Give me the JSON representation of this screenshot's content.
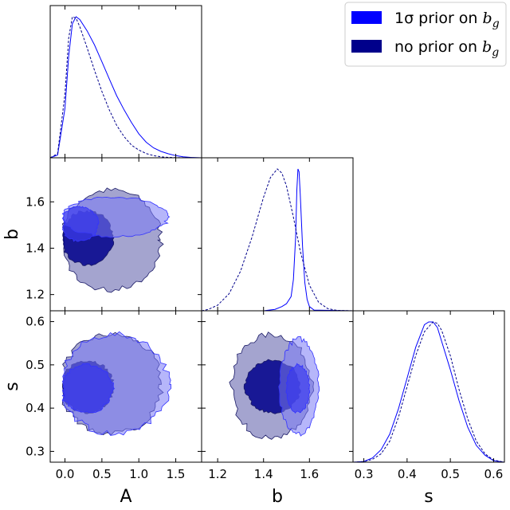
{
  "chart_data": {
    "type": "corner",
    "parameters": [
      "A",
      "b",
      "s"
    ],
    "axes": {
      "A": {
        "label": "A",
        "lim": [
          -0.2,
          1.85
        ],
        "ticks": [
          0.0,
          0.5,
          1.0,
          1.5
        ],
        "tick_labels": [
          "0.0",
          "0.5",
          "1.0",
          "1.5"
        ]
      },
      "b": {
        "label": "b",
        "lim": [
          1.13,
          1.79
        ],
        "ticks": [
          1.2,
          1.4,
          1.6
        ],
        "tick_labels": [
          "1.2",
          "1.4",
          "1.6"
        ]
      },
      "s": {
        "label": "s",
        "lim": [
          0.275,
          0.625
        ],
        "ticks": [
          0.3,
          0.4,
          0.5,
          0.6
        ],
        "tick_labels": [
          "0.3",
          "0.4",
          "0.5",
          "0.6"
        ]
      }
    },
    "legend": {
      "placement": "top-right",
      "entries": [
        {
          "text": "1σ prior on ",
          "sub": "b",
          "subscript": "g",
          "color": "#0000ff"
        },
        {
          "text": "no prior on ",
          "sub": "b",
          "subscript": "g",
          "color": "#00008b"
        }
      ]
    },
    "series": [
      {
        "key": "prior",
        "color": "#0000ff",
        "line": "solid",
        "marginals": {
          "A": {
            "x": [
              -0.2,
              -0.1,
              0.0,
              0.05,
              0.1,
              0.15,
              0.2,
              0.3,
              0.4,
              0.5,
              0.6,
              0.7,
              0.8,
              0.9,
              1.0,
              1.1,
              1.2,
              1.3,
              1.4,
              1.5,
              1.6,
              1.7,
              1.85
            ],
            "y": [
              0.0,
              0.02,
              0.35,
              0.72,
              0.95,
              1.0,
              0.98,
              0.9,
              0.8,
              0.68,
              0.56,
              0.44,
              0.34,
              0.25,
              0.17,
              0.11,
              0.07,
              0.045,
              0.028,
              0.015,
              0.007,
              0.003,
              0.0
            ]
          },
          "b": {
            "x": [
              1.13,
              1.4,
              1.45,
              1.48,
              1.5,
              1.52,
              1.53,
              1.54,
              1.545,
              1.55,
              1.555,
              1.56,
              1.57,
              1.58,
              1.59,
              1.6,
              1.62,
              1.79
            ],
            "y": [
              0.0,
              0.0,
              0.01,
              0.03,
              0.05,
              0.1,
              0.22,
              0.52,
              0.85,
              1.0,
              0.98,
              0.82,
              0.45,
              0.2,
              0.08,
              0.03,
              0.005,
              0.0
            ]
          },
          "s": {
            "x": [
              0.275,
              0.3,
              0.32,
              0.34,
              0.36,
              0.38,
              0.4,
              0.42,
              0.44,
              0.45,
              0.46,
              0.47,
              0.48,
              0.5,
              0.52,
              0.54,
              0.56,
              0.58,
              0.6,
              0.625
            ],
            "y": [
              0.0,
              0.005,
              0.03,
              0.09,
              0.2,
              0.38,
              0.6,
              0.82,
              0.98,
              1.0,
              1.0,
              0.96,
              0.86,
              0.66,
              0.44,
              0.25,
              0.12,
              0.05,
              0.01,
              0.0
            ]
          }
        },
        "contours_2d": {
          "b_vs_A": {
            "x_range_68": [
              -0.05,
              0.45
            ],
            "y_range_68": [
              1.43,
              1.58
            ],
            "x_range_95": [
              -0.05,
              1.4
            ],
            "y_range_95": [
              1.45,
              1.62
            ]
          },
          "s_vs_A": {
            "x_range_68": [
              -0.05,
              0.65
            ],
            "y_range_68": [
              0.39,
              0.5
            ],
            "x_range_95": [
              -0.05,
              1.4
            ],
            "y_range_95": [
              0.34,
              0.57
            ]
          },
          "s_vs_b": {
            "x_range_68": [
              1.5,
              1.6
            ],
            "y_range_68": [
              0.39,
              0.5
            ],
            "x_range_95": [
              1.47,
              1.64
            ],
            "y_range_95": [
              0.34,
              0.56
            ]
          }
        }
      },
      {
        "key": "noprior",
        "color": "#00008b",
        "line": "dashed",
        "marginals": {
          "A": {
            "x": [
              -0.2,
              -0.1,
              0.0,
              0.05,
              0.1,
              0.15,
              0.2,
              0.3,
              0.4,
              0.5,
              0.6,
              0.7,
              0.8,
              0.9,
              1.0,
              1.1,
              1.2,
              1.3,
              1.4,
              1.5,
              1.85
            ],
            "y": [
              0.0,
              0.03,
              0.45,
              0.85,
              1.0,
              0.99,
              0.93,
              0.78,
              0.62,
              0.47,
              0.34,
              0.23,
              0.15,
              0.09,
              0.055,
              0.03,
              0.015,
              0.007,
              0.003,
              0.001,
              0.0
            ]
          },
          "b": {
            "x": [
              1.13,
              1.16,
              1.2,
              1.25,
              1.3,
              1.35,
              1.4,
              1.43,
              1.46,
              1.48,
              1.5,
              1.53,
              1.56,
              1.6,
              1.64,
              1.68,
              1.72,
              1.79
            ],
            "y": [
              0.0,
              0.01,
              0.04,
              0.12,
              0.28,
              0.52,
              0.8,
              0.94,
              1.0,
              0.97,
              0.88,
              0.66,
              0.42,
              0.18,
              0.06,
              0.015,
              0.003,
              0.0
            ]
          },
          "s": {
            "x": [
              0.275,
              0.3,
              0.32,
              0.34,
              0.36,
              0.38,
              0.4,
              0.42,
              0.44,
              0.46,
              0.47,
              0.48,
              0.5,
              0.52,
              0.54,
              0.56,
              0.58,
              0.6,
              0.625
            ],
            "y": [
              0.0,
              0.004,
              0.02,
              0.06,
              0.15,
              0.32,
              0.54,
              0.76,
              0.93,
              1.0,
              0.99,
              0.94,
              0.76,
              0.52,
              0.31,
              0.15,
              0.06,
              0.015,
              0.0
            ]
          }
        },
        "contours_2d": {
          "b_vs_A": {
            "x_range_68": [
              -0.05,
              0.65
            ],
            "y_range_68": [
              1.33,
              1.56
            ],
            "x_range_95": [
              -0.05,
              1.3
            ],
            "y_range_95": [
              1.22,
              1.65
            ]
          },
          "s_vs_A": {
            "x_range_68": [
              -0.05,
              0.65
            ],
            "y_range_68": [
              0.39,
              0.51
            ],
            "x_range_95": [
              -0.05,
              1.3
            ],
            "y_range_95": [
              0.34,
              0.57
            ]
          },
          "s_vs_b": {
            "x_range_68": [
              1.32,
              1.56
            ],
            "y_range_68": [
              0.39,
              0.51
            ],
            "x_range_95": [
              1.26,
              1.61
            ],
            "y_range_95": [
              0.33,
              0.57
            ]
          }
        }
      }
    ],
    "contour_levels": [
      "68%",
      "95%"
    ],
    "grid": false
  }
}
